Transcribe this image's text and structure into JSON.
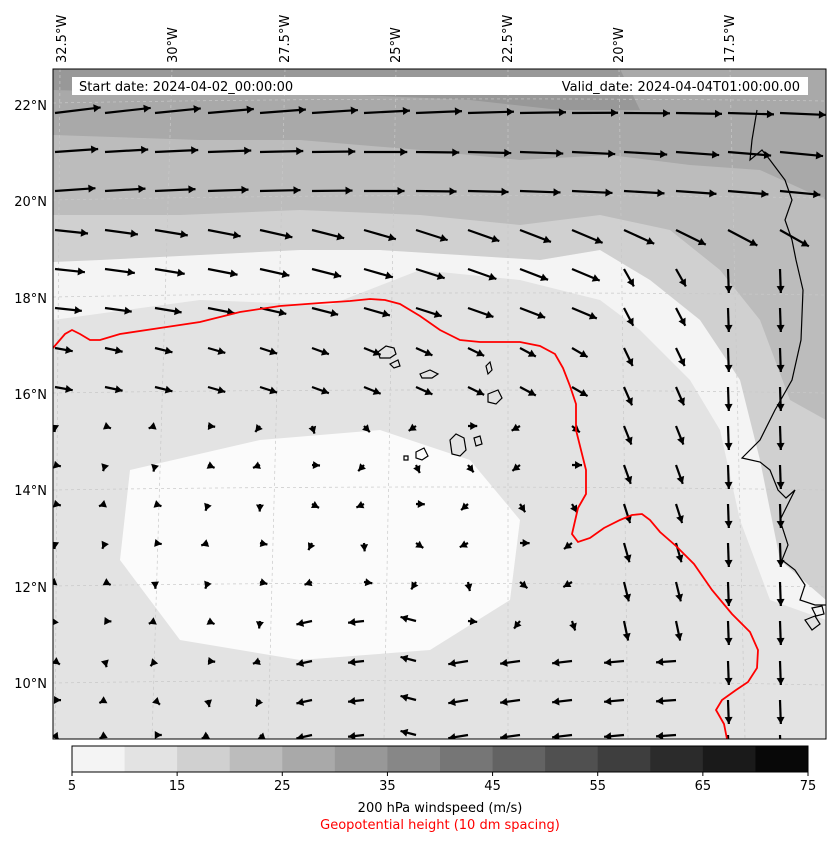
{
  "header": {
    "start_date": "Start date: 2024-04-02_00:00:00",
    "valid_date": "Valid_date: 2024-04-04T01:00:00.00"
  },
  "longitude_labels": [
    "32.5°W",
    "30°W",
    "27.5°W",
    "25°W",
    "22.5°W",
    "20°W",
    "17.5°W"
  ],
  "latitude_labels": [
    "22°N",
    "20°N",
    "18°N",
    "16°N",
    "14°N",
    "12°N",
    "10°N"
  ],
  "colorbar": {
    "ticks": [
      "5",
      "15",
      "25",
      "35",
      "45",
      "55",
      "65",
      "75"
    ],
    "label": "200 hPa windspeed (m/s)",
    "colors": [
      "#f4f4f4",
      "#e3e3e3",
      "#d0d0d0",
      "#bcbcbc",
      "#a9a9a9",
      "#989898",
      "#878787",
      "#767676",
      "#636363",
      "#505050",
      "#3e3e3e",
      "#2b2b2b",
      "#1a1a1a",
      "#080808"
    ]
  },
  "contour_legend": {
    "label": "Geopotential height (10 dm spacing)",
    "color": "#ff0000"
  },
  "colors": {
    "background_field": "#f4f4f4",
    "contour_line": "#ff0000",
    "coastline": "#000000",
    "arrow": "#000000"
  }
}
